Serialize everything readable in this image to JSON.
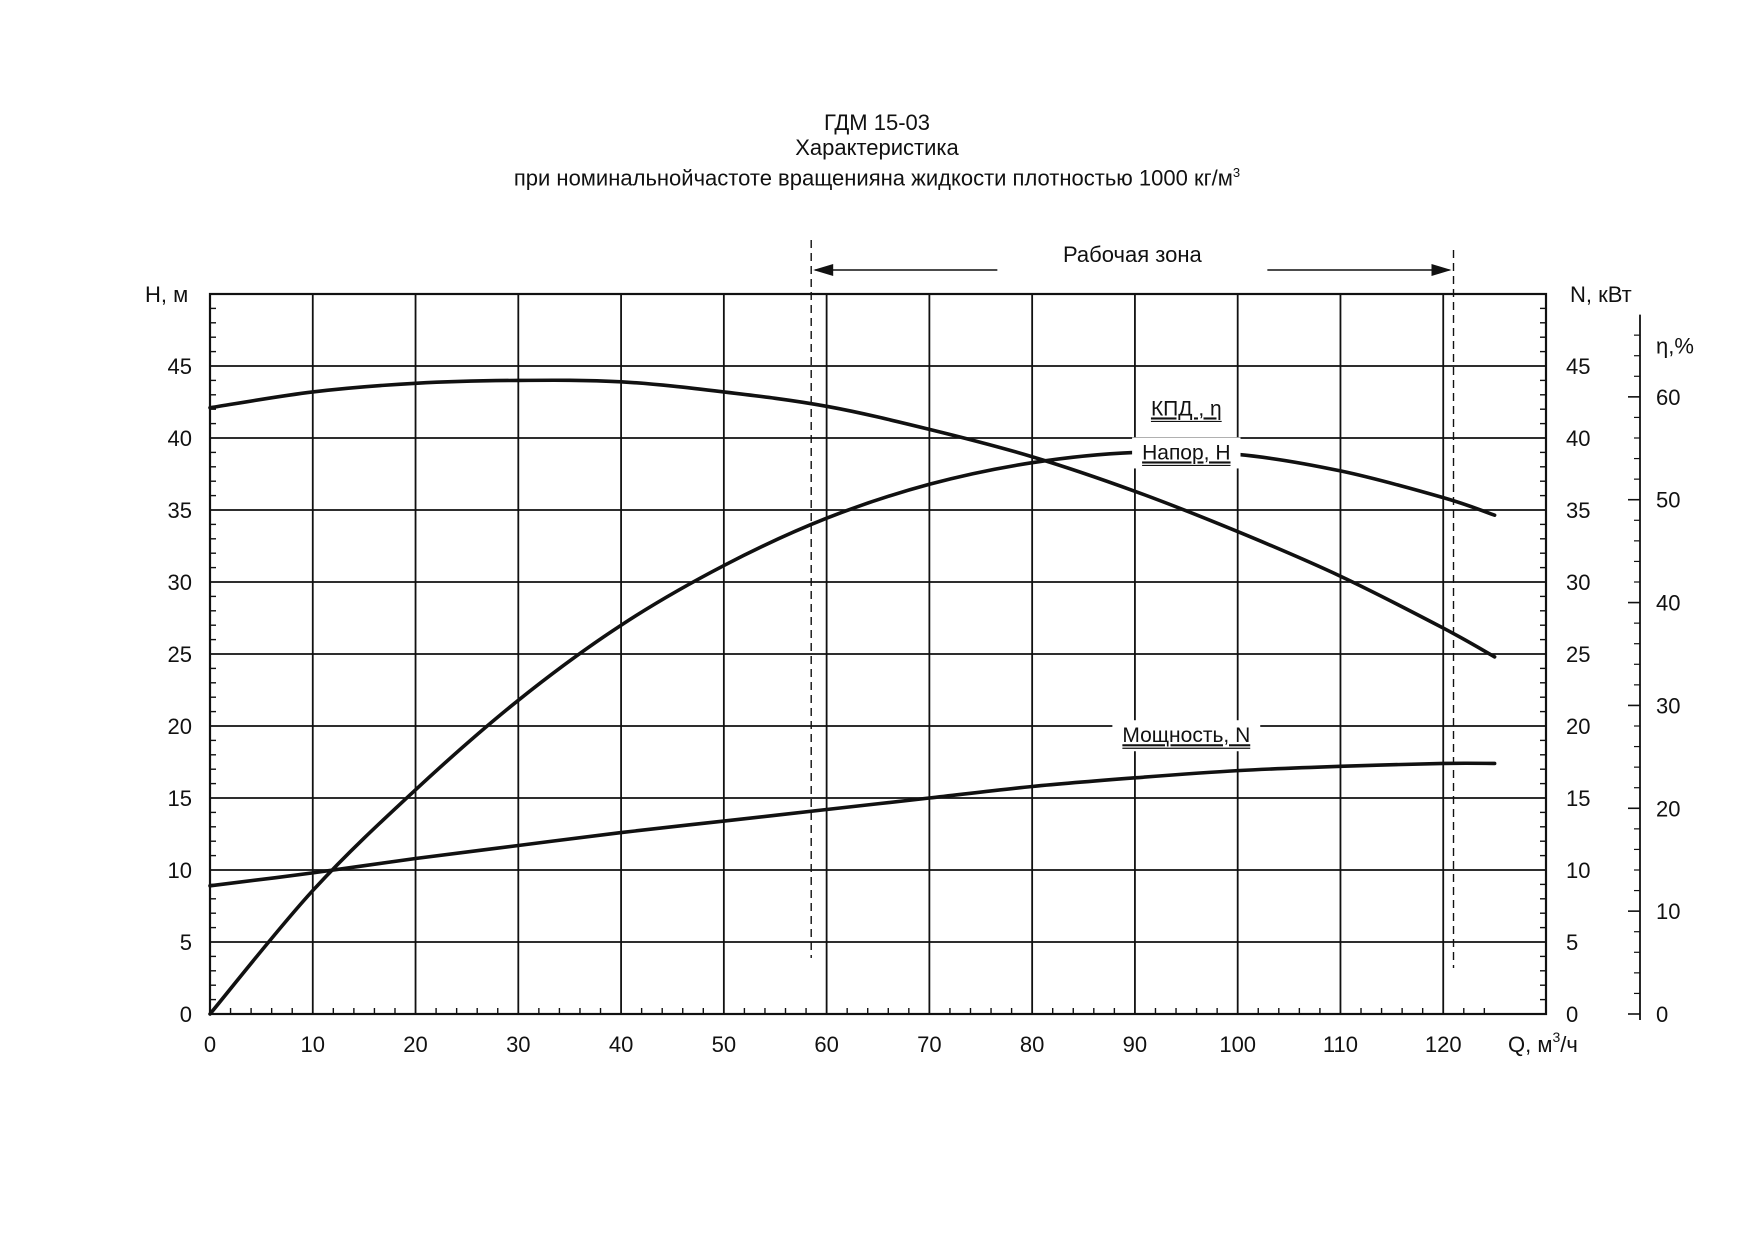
{
  "title_lines": {
    "line1": "ГДМ 15-03",
    "line2": "Характеристика",
    "line3": "при номинальнойчастоте вращенияна жидкости плотностью 1000 кг/м",
    "line3_sup": "3"
  },
  "chart_data": {
    "type": "line",
    "x": {
      "label": "Q, м",
      "label_sup": "3",
      "label_tail": "/ч",
      "range": [
        0,
        130
      ],
      "ticks": [
        0,
        10,
        20,
        30,
        40,
        50,
        60,
        70,
        80,
        90,
        100,
        110,
        120
      ],
      "tick_labels": [
        "0",
        "10",
        "20",
        "30",
        "40",
        "50",
        "60",
        "70",
        "80",
        "90",
        "100",
        "110",
        "120"
      ]
    },
    "y_left": {
      "label": "H, м",
      "range": [
        0,
        50
      ],
      "ticks": [
        0,
        5,
        10,
        15,
        20,
        25,
        30,
        35,
        40,
        45
      ],
      "tick_labels": [
        "0",
        "5",
        "10",
        "15",
        "20",
        "25",
        "30",
        "35",
        "40",
        "45"
      ]
    },
    "y_right": {
      "label": "N, кВт",
      "range": [
        0,
        50
      ],
      "ticks": [
        0,
        5,
        10,
        15,
        20,
        25,
        30,
        35,
        40,
        45
      ],
      "tick_labels": [
        "0",
        "5",
        "10",
        "15",
        "20",
        "25",
        "30",
        "35",
        "40",
        "45"
      ]
    },
    "y_eta": {
      "label": "η,%",
      "range": [
        0,
        70
      ],
      "ticks": [
        0,
        10,
        20,
        30,
        40,
        50,
        60
      ],
      "tick_labels": [
        "0",
        "10",
        "20",
        "30",
        "40",
        "50",
        "60"
      ]
    },
    "grid": true,
    "working_zone": {
      "label": "Рабочая зона",
      "q_min": 58.5,
      "q_max": 121
    },
    "series": [
      {
        "name": "Напор, H",
        "axis": "y_left",
        "x": [
          0,
          10,
          20,
          30,
          40,
          50,
          60,
          70,
          80,
          90,
          100,
          110,
          120,
          125
        ],
        "y": [
          42.1,
          43.2,
          43.8,
          44.0,
          43.9,
          43.2,
          42.2,
          40.6,
          38.7,
          36.3,
          33.5,
          30.4,
          26.8,
          24.8
        ],
        "label_at": 95
      },
      {
        "name": "КПД , η",
        "axis": "y_eta",
        "x": [
          0,
          10,
          20,
          30,
          40,
          50,
          60,
          70,
          80,
          90,
          100,
          110,
          120,
          125
        ],
        "y": [
          0,
          12.0,
          21.8,
          30.5,
          37.8,
          43.6,
          48.2,
          51.5,
          53.6,
          54.6,
          54.4,
          52.8,
          50.2,
          48.5
        ],
        "label_at": 95
      },
      {
        "name": "Мощность, N",
        "axis": "y_right",
        "x": [
          0,
          10,
          20,
          30,
          40,
          50,
          60,
          70,
          80,
          90,
          100,
          110,
          120,
          125
        ],
        "y": [
          8.9,
          9.8,
          10.8,
          11.7,
          12.6,
          13.4,
          14.2,
          15.0,
          15.8,
          16.4,
          16.9,
          17.2,
          17.4,
          17.4
        ],
        "label_at": 95
      }
    ]
  }
}
